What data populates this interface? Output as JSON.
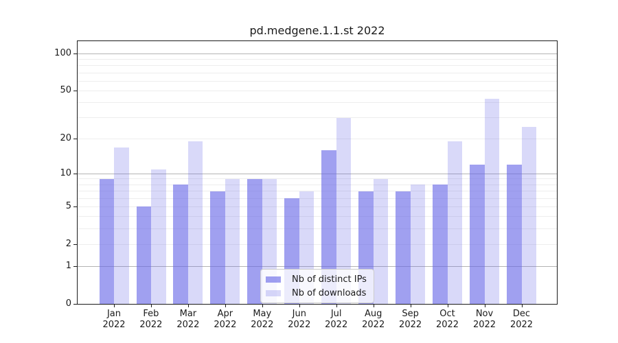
{
  "title": "pd.medgene.1.1.st 2022",
  "chart_data": {
    "type": "bar",
    "title": "pd.medgene.1.1.st 2022",
    "categories": [
      "Jan",
      "Feb",
      "Mar",
      "Apr",
      "May",
      "Jun",
      "Jul",
      "Aug",
      "Sep",
      "Oct",
      "Nov",
      "Dec"
    ],
    "x_year_label": "2022",
    "series": [
      {
        "name": "Nb of distinct IPs",
        "values": [
          9,
          5,
          8,
          7,
          9,
          6,
          16,
          7,
          7,
          8,
          12,
          12
        ],
        "color_hex": "#a0a0f0",
        "rgba": "rgba(102,102,230,0.62)"
      },
      {
        "name": "Nb of downloads",
        "values": [
          17,
          11,
          19,
          9,
          9,
          7,
          30,
          9,
          8,
          19,
          43,
          25
        ],
        "color_hex": "#d9d9f9",
        "rgba": "rgba(102,102,230,0.25)"
      }
    ],
    "y_scale": "log1p",
    "y_ticks": [
      100,
      50,
      20,
      10,
      5,
      2,
      1,
      0
    ],
    "y_minor_grid": [
      2,
      3,
      4,
      5,
      6,
      7,
      8,
      9,
      20,
      30,
      40,
      50,
      60,
      70,
      80,
      90
    ],
    "y_major_grid": [
      1,
      10,
      100
    ],
    "ylim": [
      0,
      126
    ],
    "grid": true,
    "legend": {
      "position": "lower-center-inside",
      "entries": [
        "Nb of distinct IPs",
        "Nb of downloads"
      ]
    },
    "colors": {
      "minor_grid": "#ededed",
      "major_grid": "#b3b3b3",
      "spine": "#1a1a1a",
      "text": "#1a1a1a",
      "legend_border": "#cccccc",
      "legend_bg": "rgba(255,255,255,0.8)"
    }
  }
}
